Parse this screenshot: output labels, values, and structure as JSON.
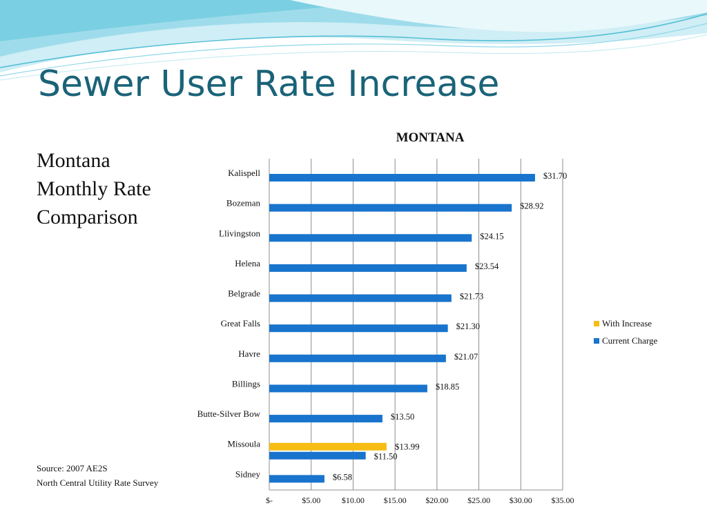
{
  "slide": {
    "title": "Sewer User Rate Increase",
    "subtitle_lines": [
      "Montana",
      "Monthly Rate",
      "Comparison"
    ],
    "source_lines": [
      "Source: 2007 AE2S",
      "North Central Utility Rate Survey"
    ]
  },
  "colors": {
    "title": "#1a6378",
    "current_charge": "#1874cd",
    "with_increase": "#f7bd14",
    "grid": "#8c8c8c",
    "swoosh": "#6fc9dc"
  },
  "chart_data": {
    "type": "bar",
    "orientation": "horizontal",
    "title": "MONTANA",
    "categories": [
      "Kalispell",
      "Bozeman",
      "Llivingston",
      "Helena",
      "Belgrade",
      "Great Falls",
      "Havre",
      "Billings",
      "Butte-Silver Bow",
      "Missoula",
      "Sidney"
    ],
    "series": [
      {
        "name": "With Increase",
        "values": [
          null,
          null,
          null,
          null,
          null,
          null,
          null,
          null,
          null,
          13.99,
          null
        ],
        "labels": [
          null,
          null,
          null,
          null,
          null,
          null,
          null,
          null,
          null,
          "$13.99",
          null
        ]
      },
      {
        "name": "Current Charge",
        "values": [
          31.7,
          28.92,
          24.15,
          23.54,
          21.73,
          21.3,
          21.07,
          18.85,
          13.5,
          11.5,
          6.58
        ],
        "labels": [
          "$31.70",
          "$28.92",
          "$24.15",
          "$23.54",
          "$21.73",
          "$21.30",
          "$21.07",
          "$18.85",
          "$13.50",
          "$11.50",
          "$6.58"
        ]
      }
    ],
    "x_ticks": [
      0,
      5,
      10,
      15,
      20,
      25,
      30,
      35
    ],
    "x_tick_labels": [
      "$-",
      "$5.00",
      "$10.00",
      "$15.00",
      "$20.00",
      "$25.00",
      "$30.00",
      "$35.00"
    ],
    "xlim": [
      0,
      35
    ],
    "grid": true,
    "legend_position": "right"
  }
}
